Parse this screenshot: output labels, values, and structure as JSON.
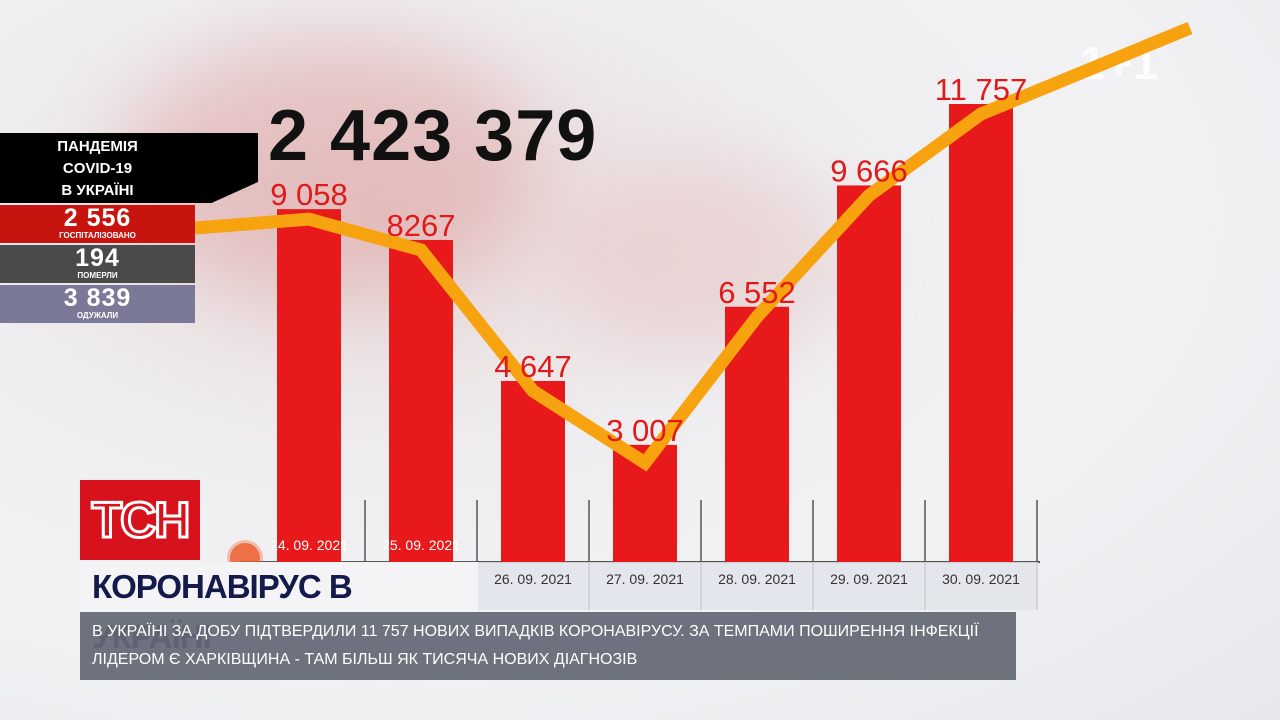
{
  "panel": {
    "header": [
      "ПАНДЕМІЯ",
      "COVID-19",
      "В УКРАЇНІ"
    ],
    "total": "2 423 379",
    "stats": [
      {
        "value": "2 556",
        "label": "ГОСПІТАЛІЗОВАНО",
        "color": "#c8140e"
      },
      {
        "value": "194",
        "label": "ПОМЕРЛИ",
        "color": "#4a4a4a"
      },
      {
        "value": "3 839",
        "label": "ОДУЖАЛИ",
        "color": "#7a7a98"
      }
    ]
  },
  "chart_data": {
    "type": "bar",
    "categories": [
      "24. 09. 2021",
      "25. 09. 2021",
      "26. 09. 2021",
      "27. 09. 2021",
      "28. 09. 2021",
      "29. 09. 2021",
      "30. 09. 2021"
    ],
    "values": [
      9058,
      8267,
      4647,
      3007,
      6552,
      9666,
      11757
    ],
    "labels": [
      "9 058",
      "8267",
      "4 647",
      "3 007",
      "6 552",
      "9 666",
      "11 757"
    ],
    "trend_line": true,
    "bar_color": "#e8191a",
    "line_color": "#f7a20f",
    "ylim": [
      0,
      14400
    ]
  },
  "banner": {
    "logo": "ТСН",
    "title": "КОРОНАВІРУС В УКРАЇНІ",
    "subtitle": "В Україні за добу підтвердили 11 757 нових випадків коронавірусу. За темпами поширення інфекції лідером є Харківщина - там більш як тисяча нових діагнозів"
  },
  "channel_logo": "1+1"
}
